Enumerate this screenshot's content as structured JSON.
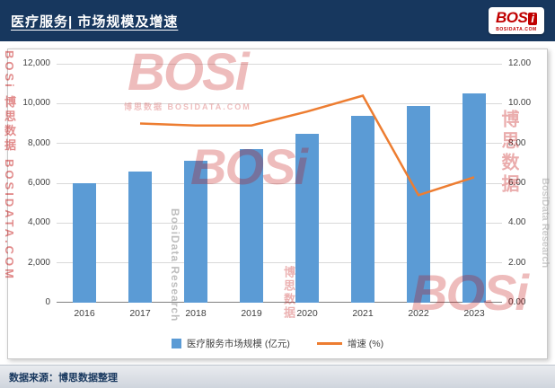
{
  "header": {
    "title": "医疗服务| 市场规模及增速",
    "logo": {
      "bos": "BOS",
      "i": "i",
      "sub": "BOSIDATA.COM"
    }
  },
  "legend": {
    "bar_label": "医疗服务市场规模 (亿元)",
    "line_label": "增速 (%)"
  },
  "footer": {
    "source": "数据来源：博思数据整理"
  },
  "watermarks": {
    "brand": "BOSi",
    "brand_cn": "博思数据",
    "brand_en": "BosiData Research",
    "site": "BOSIDATA.COM"
  },
  "colors": {
    "header_bg": "#17375E",
    "bar": "#5B9BD5",
    "line": "#ED7D31",
    "watermark_red": "#C00000",
    "grid": "#D9D9D9"
  },
  "chart_data": {
    "type": "bar+line",
    "title": "医疗服务| 市场规模及增速",
    "categories": [
      "2016",
      "2017",
      "2018",
      "2019",
      "2020",
      "2021",
      "2022",
      "2023"
    ],
    "series": [
      {
        "name": "医疗服务市场规模 (亿元)",
        "type": "bar",
        "axis": "left",
        "color": "#5B9BD5",
        "values": [
          6000,
          6600,
          7150,
          7700,
          8500,
          9400,
          9900,
          10500
        ]
      },
      {
        "name": "增速 (%)",
        "type": "line",
        "axis": "right",
        "color": "#ED7D31",
        "values": [
          null,
          9.0,
          8.9,
          8.9,
          9.6,
          10.4,
          5.4,
          6.3
        ]
      }
    ],
    "left_axis": {
      "min": 0,
      "max": 12000,
      "step": 2000,
      "ticks": [
        "0",
        "2,000",
        "4,000",
        "6,000",
        "8,000",
        "10,000",
        "12,000"
      ]
    },
    "right_axis": {
      "min": 0,
      "max": 12,
      "step": 2,
      "ticks": [
        "0.00",
        "2.00",
        "4.00",
        "6.00",
        "8.00",
        "10.00",
        "12.00"
      ]
    },
    "grid": true,
    "legend_position": "bottom"
  }
}
